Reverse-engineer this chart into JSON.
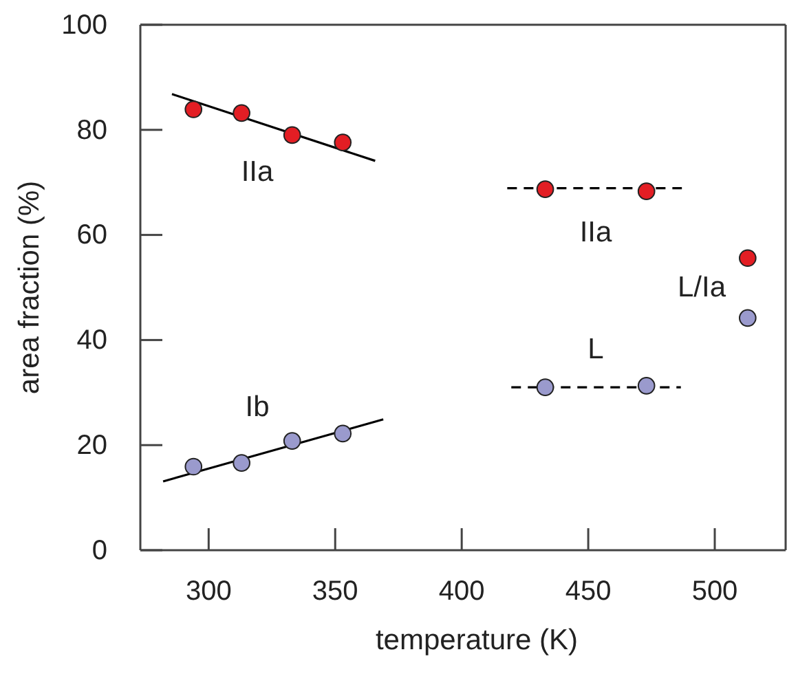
{
  "chart_data": {
    "type": "scatter",
    "xlabel": "temperature  (K)",
    "ylabel": "area fraction (%)",
    "xlim": [
      273,
      528
    ],
    "xticks": [
      300,
      350,
      400,
      450,
      500
    ],
    "ylim": [
      0,
      100
    ],
    "yticks": [
      0,
      20,
      40,
      60,
      80,
      100
    ],
    "grid": false,
    "series": [
      {
        "color": "#e31e24",
        "marker": "circle",
        "x": [
          294,
          313,
          333,
          353,
          433,
          473,
          513
        ],
        "values": [
          83.9,
          83.2,
          79.0,
          77.6,
          68.7,
          68.3,
          55.6
        ]
      },
      {
        "color": "#9a9acd",
        "marker": "circle",
        "x": [
          294,
          313,
          333,
          353,
          433,
          473,
          513
        ],
        "values": [
          15.9,
          16.6,
          20.8,
          22.2,
          31.0,
          31.3,
          44.2
        ]
      },
      {
        "type": "line",
        "color": "#000000",
        "line_style": "solid",
        "x": [
          285.5,
          365.8
        ],
        "values": [
          86.8,
          74.1
        ]
      },
      {
        "type": "line",
        "color": "#000000",
        "line_style": "solid",
        "x": [
          282,
          369
        ],
        "values": [
          13.1,
          24.9
        ]
      },
      {
        "type": "line",
        "color": "#000000",
        "line_style": "dashed",
        "x": [
          418,
          487
        ],
        "values": [
          68.9,
          68.9
        ]
      },
      {
        "type": "line",
        "color": "#000000",
        "line_style": "dashed",
        "x": [
          419.6,
          486.6
        ],
        "values": [
          31.0,
          31.0
        ]
      }
    ],
    "annotations": [
      "IIa",
      "Ib",
      "IIa",
      "L/Ia",
      "L"
    ]
  }
}
